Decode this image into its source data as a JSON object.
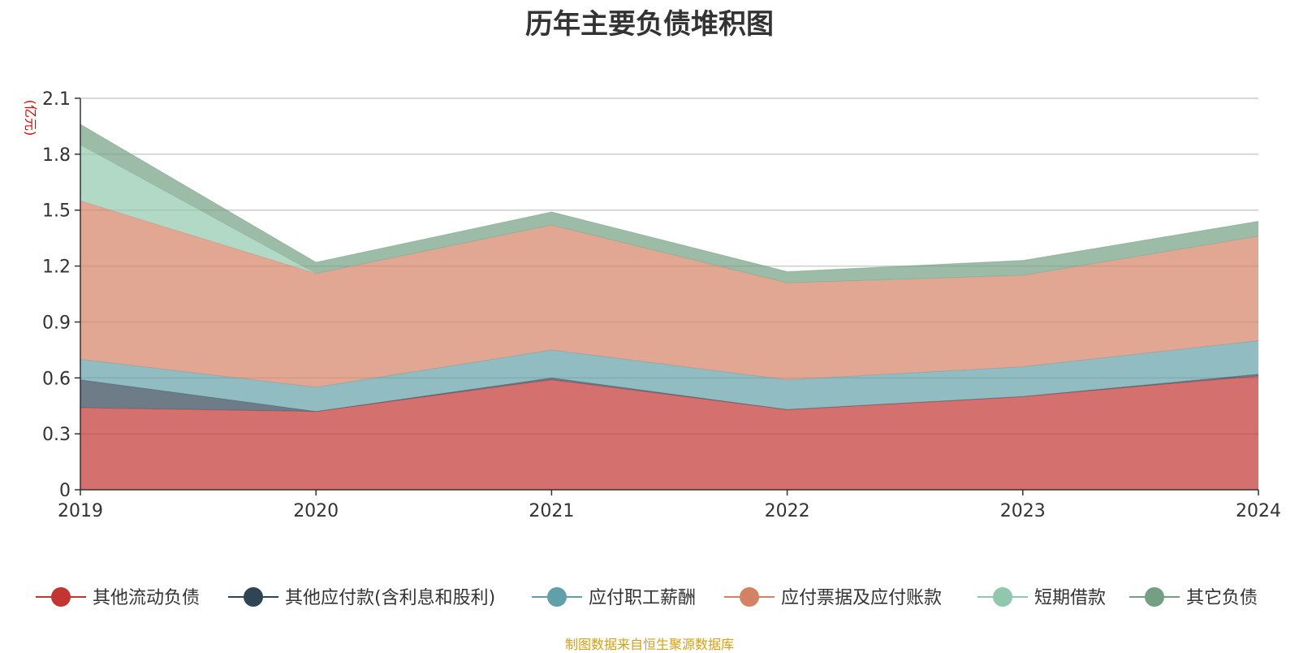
{
  "title": "历年主要负债堆积图",
  "source_note": "制图数据来自恒生聚源数据库",
  "chart_data": {
    "type": "area",
    "stacked": true,
    "title": "历年主要负债堆积图",
    "unit_label": "(亿元)",
    "categories": [
      "2019",
      "2020",
      "2021",
      "2022",
      "2023",
      "2024"
    ],
    "ylim": [
      0,
      2.1
    ],
    "yticks": [
      0,
      0.3,
      0.6,
      0.9,
      1.2,
      1.5,
      1.8,
      2.1
    ],
    "ytick_labels": [
      "0",
      "0.3",
      "0.6",
      "0.9",
      "1.2",
      "1.5",
      "1.8",
      "2.1"
    ],
    "grid": true,
    "legend_position": "bottom",
    "series": [
      {
        "name": "其他流动负债",
        "color": "#c23531",
        "values": [
          0.44,
          0.42,
          0.59,
          0.43,
          0.5,
          0.61
        ]
      },
      {
        "name": "其他应付款(含利息和股利)",
        "color": "#2f4554",
        "values": [
          0.15,
          0.0,
          0.01,
          0.0,
          0.0,
          0.01
        ]
      },
      {
        "name": "应付职工薪酬",
        "color": "#61a0a8",
        "values": [
          0.11,
          0.13,
          0.15,
          0.16,
          0.16,
          0.18
        ]
      },
      {
        "name": "应付票据及应付账款",
        "color": "#d48265",
        "values": [
          0.85,
          0.61,
          0.67,
          0.52,
          0.49,
          0.56
        ]
      },
      {
        "name": "短期借款",
        "color": "#91c7ae",
        "values": [
          0.3,
          0.0,
          0.0,
          0.0,
          0.0,
          0.0
        ]
      },
      {
        "name": "其它负债",
        "color": "#749f83",
        "values": [
          0.11,
          0.06,
          0.07,
          0.06,
          0.08,
          0.08
        ]
      }
    ]
  }
}
